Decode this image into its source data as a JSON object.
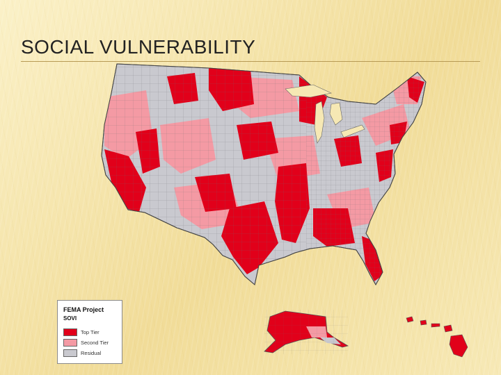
{
  "slide": {
    "title": "SOCIAL VULNERABILITY"
  },
  "colors": {
    "top_tier": "#e1001a",
    "second_tier": "#f49aa4",
    "residual": "#c9c9cf",
    "county_line": "#6b6b70"
  },
  "legend": {
    "title": "FEMA Project",
    "subtitle": "SOVI",
    "items": [
      {
        "label": "Top Tier",
        "color": "#e1001a"
      },
      {
        "label": "Second Tier",
        "color": "#f49aa4"
      },
      {
        "label": "Residual",
        "color": "#c9c9cf"
      }
    ]
  }
}
